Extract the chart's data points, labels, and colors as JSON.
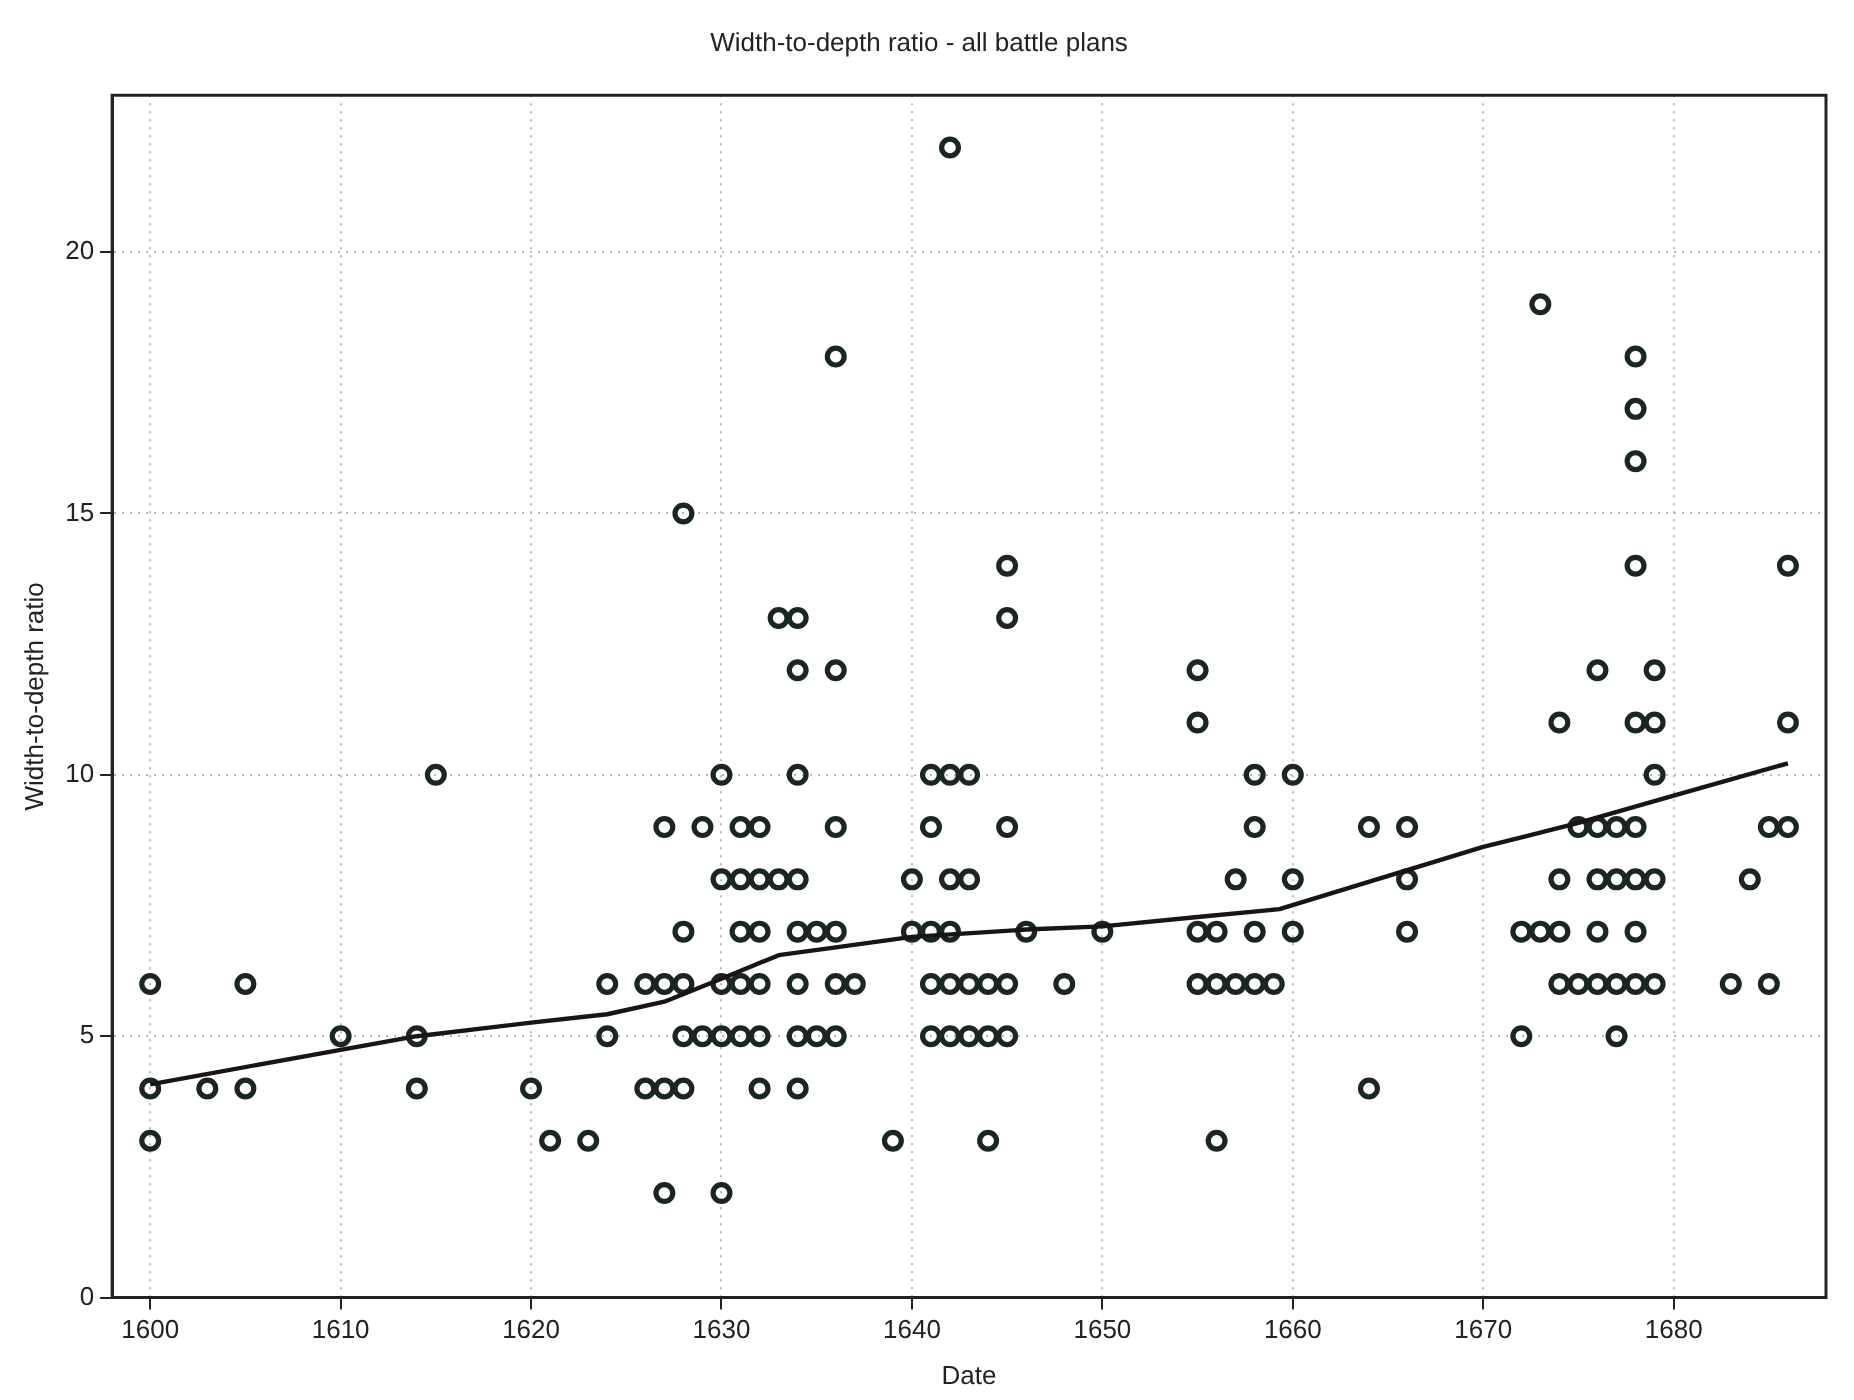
{
  "chart_data": {
    "type": "scatter",
    "title": "Width-to-depth ratio - all battle plans",
    "xlabel": "Date",
    "ylabel": "Width-to-depth ratio",
    "xlim": [
      1598,
      1688
    ],
    "xticks": [
      1600,
      1610,
      1620,
      1630,
      1640,
      1650,
      1660,
      1670,
      1680
    ],
    "ylim": [
      0,
      23
    ],
    "yticks": [
      0,
      5,
      10,
      15,
      20
    ],
    "grid": true,
    "legend": false,
    "series": [
      {
        "marker": "circle",
        "color": "#1a2622",
        "x": [
          1600,
          1600,
          1600,
          1603,
          1605,
          1605,
          1610,
          1614,
          1614,
          1615,
          1620,
          1621,
          1623,
          1624,
          1624,
          1626,
          1626,
          1627,
          1627,
          1627,
          1627,
          1628,
          1628,
          1628,
          1628,
          1628,
          1629,
          1629,
          1630,
          1630,
          1630,
          1630,
          1630,
          1631,
          1631,
          1631,
          1631,
          1631,
          1632,
          1632,
          1632,
          1632,
          1632,
          1632,
          1633,
          1633,
          1634,
          1634,
          1634,
          1634,
          1634,
          1634,
          1634,
          1634,
          1635,
          1635,
          1636,
          1636,
          1636,
          1636,
          1636,
          1636,
          1637,
          1639,
          1640,
          1640,
          1641,
          1641,
          1641,
          1641,
          1641,
          1642,
          1642,
          1642,
          1642,
          1642,
          1642,
          1643,
          1643,
          1643,
          1643,
          1644,
          1644,
          1644,
          1645,
          1645,
          1645,
          1645,
          1645,
          1646,
          1648,
          1650,
          1655,
          1655,
          1655,
          1655,
          1656,
          1656,
          1656,
          1657,
          1657,
          1658,
          1658,
          1658,
          1658,
          1659,
          1660,
          1660,
          1660,
          1664,
          1664,
          1666,
          1666,
          1666,
          1672,
          1672,
          1673,
          1673,
          1674,
          1674,
          1674,
          1674,
          1675,
          1675,
          1676,
          1676,
          1676,
          1676,
          1676,
          1677,
          1677,
          1677,
          1677,
          1678,
          1678,
          1678,
          1678,
          1678,
          1678,
          1678,
          1678,
          1678,
          1679,
          1679,
          1679,
          1679,
          1679,
          1683,
          1684,
          1685,
          1685,
          1686,
          1686,
          1686
        ],
        "values": [
          6,
          4,
          3,
          4,
          6,
          4,
          5,
          5,
          4,
          10,
          4,
          3,
          3,
          6,
          5,
          6,
          4,
          9,
          6,
          4,
          2,
          15,
          7,
          6,
          5,
          4,
          9,
          5,
          10,
          8,
          6,
          5,
          2,
          9,
          8,
          7,
          6,
          5,
          9,
          8,
          7,
          6,
          5,
          4,
          13,
          8,
          13,
          12,
          10,
          8,
          7,
          6,
          5,
          4,
          7,
          5,
          18,
          12,
          9,
          7,
          6,
          5,
          6,
          3,
          8,
          7,
          10,
          9,
          7,
          6,
          5,
          22,
          10,
          8,
          7,
          6,
          5,
          10,
          8,
          6,
          5,
          6,
          5,
          3,
          14,
          13,
          9,
          6,
          5,
          7,
          6,
          7,
          12,
          11,
          7,
          6,
          7,
          6,
          3,
          8,
          6,
          10,
          9,
          7,
          6,
          6,
          10,
          8,
          7,
          9,
          4,
          9,
          8,
          7,
          7,
          5,
          19,
          7,
          11,
          8,
          7,
          6,
          9,
          6,
          12,
          9,
          8,
          7,
          6,
          9,
          8,
          6,
          5,
          18,
          17,
          16,
          14,
          11,
          9,
          8,
          7,
          6,
          12,
          11,
          10,
          8,
          6,
          6,
          8,
          9,
          6,
          14,
          11,
          9
        ]
      },
      {
        "type": "line",
        "marker": "none",
        "line_style": "solid",
        "color": "#1a1414",
        "x": [
          1600,
          1610,
          1614,
          1620,
          1624,
          1627,
          1630,
          1633,
          1636,
          1640,
          1646,
          1650,
          1655,
          1659.3,
          1670,
          1675,
          1680,
          1686
        ],
        "values": [
          4.08,
          4.74,
          5.0,
          5.26,
          5.42,
          5.66,
          6.1,
          6.55,
          6.7,
          6.9,
          7.04,
          7.1,
          7.28,
          7.43,
          8.62,
          9.08,
          9.6,
          10.22
        ]
      }
    ]
  }
}
